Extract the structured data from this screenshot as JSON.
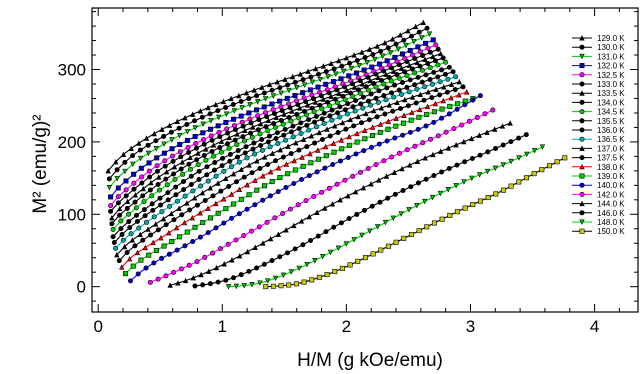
{
  "chart_data": {
    "type": "line",
    "title": "",
    "xlabel": "H/M (g kOe/emu)",
    "ylabel": "M² (emu/g)²",
    "xlim": [
      -0.05,
      4.35
    ],
    "ylim": [
      -35,
      385
    ],
    "x_ticks": [
      "0",
      "1",
      "2",
      "3",
      "4"
    ],
    "y_ticks": [
      "0",
      "100",
      "200",
      "300"
    ],
    "grid": false,
    "legend_position": "right",
    "series": [
      {
        "name": "129.0 K",
        "color": "#000000",
        "marker": "triangle",
        "x0": 0.08,
        "x1": 2.62,
        "values": [
          [
            0.08,
            160
          ],
          [
            0.14,
            172
          ],
          [
            0.2,
            182
          ],
          [
            0.3,
            195
          ],
          [
            0.5,
            216
          ],
          [
            0.8,
            241
          ],
          [
            1.2,
            268
          ],
          [
            1.6,
            292
          ],
          [
            2.0,
            316
          ],
          [
            2.3,
            336
          ],
          [
            2.62,
            365
          ]
        ]
      },
      {
        "name": "130.0 K",
        "color": "#000000",
        "marker": "circle",
        "x0": 0.09,
        "x1": 2.65,
        "values": [
          [
            0.09,
            149
          ],
          [
            0.15,
            161
          ],
          [
            0.21,
            171
          ],
          [
            0.3,
            184
          ],
          [
            0.5,
            205
          ],
          [
            0.8,
            231
          ],
          [
            1.2,
            259
          ],
          [
            1.6,
            283
          ],
          [
            2.0,
            307
          ],
          [
            2.3,
            327
          ],
          [
            2.65,
            357
          ]
        ]
      },
      {
        "name": "131.0 K",
        "color": "#00cc00",
        "marker": "triangle-down",
        "x0": 0.09,
        "x1": 2.67,
        "values": [
          [
            0.09,
            137
          ],
          [
            0.15,
            149
          ],
          [
            0.22,
            160
          ],
          [
            0.3,
            172
          ],
          [
            0.5,
            194
          ],
          [
            0.8,
            221
          ],
          [
            1.2,
            250
          ],
          [
            1.6,
            275
          ],
          [
            2.0,
            299
          ],
          [
            2.3,
            319
          ],
          [
            2.67,
            349
          ]
        ]
      },
      {
        "name": "132.0 K",
        "color": "#0000cc",
        "marker": "square",
        "x0": 0.1,
        "x1": 2.7,
        "values": [
          [
            0.1,
            124
          ],
          [
            0.16,
            136
          ],
          [
            0.23,
            147
          ],
          [
            0.32,
            160
          ],
          [
            0.5,
            181
          ],
          [
            0.8,
            209
          ],
          [
            1.2,
            239
          ],
          [
            1.6,
            265
          ],
          [
            2.0,
            290
          ],
          [
            2.3,
            310
          ],
          [
            2.7,
            341
          ]
        ]
      },
      {
        "name": "132.5 K",
        "color": "#ff00ff",
        "marker": "circle",
        "x0": 0.1,
        "x1": 2.72,
        "values": [
          [
            0.1,
            112
          ],
          [
            0.16,
            124
          ],
          [
            0.24,
            136
          ],
          [
            0.33,
            149
          ],
          [
            0.5,
            170
          ],
          [
            0.8,
            199
          ],
          [
            1.2,
            230
          ],
          [
            1.6,
            257
          ],
          [
            2.0,
            282
          ],
          [
            2.3,
            303
          ],
          [
            2.72,
            334
          ]
        ]
      },
      {
        "name": "133.0 K",
        "color": "#000000",
        "marker": "circle",
        "x0": 0.1,
        "x1": 2.74,
        "values": [
          [
            0.1,
            104
          ],
          [
            0.17,
            117
          ],
          [
            0.25,
            129
          ],
          [
            0.35,
            143
          ],
          [
            0.5,
            162
          ],
          [
            0.8,
            192
          ],
          [
            1.2,
            224
          ],
          [
            1.6,
            251
          ],
          [
            2.0,
            277
          ],
          [
            2.3,
            298
          ],
          [
            2.74,
            328
          ]
        ]
      },
      {
        "name": "133.5 K",
        "color": "#000000",
        "marker": "triangle",
        "x0": 0.11,
        "x1": 2.76,
        "values": [
          [
            0.11,
            95
          ],
          [
            0.18,
            109
          ],
          [
            0.26,
            121
          ],
          [
            0.36,
            135
          ],
          [
            0.52,
            155
          ],
          [
            0.8,
            184
          ],
          [
            1.2,
            217
          ],
          [
            1.6,
            245
          ],
          [
            2.0,
            271
          ],
          [
            2.3,
            292
          ],
          [
            2.76,
            322
          ]
        ]
      },
      {
        "name": "134.0 K",
        "color": "#000000",
        "marker": "circle",
        "x0": 0.11,
        "x1": 2.78,
        "values": [
          [
            0.11,
            87
          ],
          [
            0.18,
            100
          ],
          [
            0.27,
            113
          ],
          [
            0.37,
            127
          ],
          [
            0.54,
            148
          ],
          [
            0.8,
            176
          ],
          [
            1.2,
            210
          ],
          [
            1.6,
            238
          ],
          [
            2.0,
            265
          ],
          [
            2.3,
            286
          ],
          [
            2.78,
            316
          ]
        ]
      },
      {
        "name": "134.5 K",
        "color": "#00cc00",
        "marker": "circle",
        "x0": 0.12,
        "x1": 2.8,
        "values": [
          [
            0.12,
            79
          ],
          [
            0.19,
            92
          ],
          [
            0.28,
            105
          ],
          [
            0.38,
            119
          ],
          [
            0.55,
            140
          ],
          [
            0.8,
            168
          ],
          [
            1.2,
            203
          ],
          [
            1.6,
            232
          ],
          [
            2.0,
            259
          ],
          [
            2.3,
            280
          ],
          [
            2.8,
            310
          ]
        ]
      },
      {
        "name": "135.5 K",
        "color": "#000000",
        "marker": "circle",
        "x0": 0.12,
        "x1": 2.83,
        "values": [
          [
            0.12,
            69
          ],
          [
            0.2,
            83
          ],
          [
            0.29,
            96
          ],
          [
            0.4,
            110
          ],
          [
            0.57,
            131
          ],
          [
            0.8,
            158
          ],
          [
            1.2,
            194
          ],
          [
            1.6,
            224
          ],
          [
            2.0,
            252
          ],
          [
            2.3,
            273
          ],
          [
            2.83,
            303
          ]
        ]
      },
      {
        "name": "136.0 K",
        "color": "#000000",
        "marker": "circle",
        "x0": 0.13,
        "x1": 2.86,
        "values": [
          [
            0.13,
            61
          ],
          [
            0.21,
            75
          ],
          [
            0.3,
            88
          ],
          [
            0.42,
            103
          ],
          [
            0.6,
            124
          ],
          [
            0.85,
            152
          ],
          [
            1.2,
            186
          ],
          [
            1.6,
            217
          ],
          [
            2.0,
            245
          ],
          [
            2.4,
            270
          ],
          [
            2.86,
            297
          ]
        ]
      },
      {
        "name": "136.5 K",
        "color": "#00aaaa",
        "marker": "circle",
        "x0": 0.14,
        "x1": 2.88,
        "values": [
          [
            0.14,
            53
          ],
          [
            0.22,
            67
          ],
          [
            0.32,
            80
          ],
          [
            0.44,
            95
          ],
          [
            0.62,
            116
          ],
          [
            0.87,
            144
          ],
          [
            1.2,
            178
          ],
          [
            1.6,
            209
          ],
          [
            2.0,
            238
          ],
          [
            2.4,
            263
          ],
          [
            2.88,
            290
          ]
        ]
      },
      {
        "name": "137.0 K",
        "color": "#000000",
        "marker": "triangle",
        "x0": 0.15,
        "x1": 2.91,
        "values": [
          [
            0.15,
            44
          ],
          [
            0.23,
            58
          ],
          [
            0.33,
            71
          ],
          [
            0.46,
            86
          ],
          [
            0.65,
            108
          ],
          [
            0.9,
            136
          ],
          [
            1.25,
            171
          ],
          [
            1.65,
            203
          ],
          [
            2.05,
            232
          ],
          [
            2.45,
            257
          ],
          [
            2.91,
            283
          ]
        ]
      },
      {
        "name": "137.5 K",
        "color": "#000000",
        "marker": "circle",
        "x0": 0.17,
        "x1": 2.94,
        "values": [
          [
            0.17,
            36
          ],
          [
            0.25,
            50
          ],
          [
            0.35,
            63
          ],
          [
            0.48,
            78
          ],
          [
            0.68,
            100
          ],
          [
            0.95,
            128
          ],
          [
            1.3,
            163
          ],
          [
            1.7,
            195
          ],
          [
            2.1,
            225
          ],
          [
            2.5,
            250
          ],
          [
            2.94,
            276
          ]
        ]
      },
      {
        "name": "138.0 K",
        "color": "#ff0000",
        "marker": "triangle",
        "x0": 0.19,
        "x1": 2.97,
        "values": [
          [
            0.19,
            27
          ],
          [
            0.27,
            41
          ],
          [
            0.38,
            54
          ],
          [
            0.52,
            69
          ],
          [
            0.72,
            91
          ],
          [
            1.0,
            120
          ],
          [
            1.35,
            155
          ],
          [
            1.75,
            187
          ],
          [
            2.15,
            216
          ],
          [
            2.55,
            242
          ],
          [
            2.97,
            269
          ]
        ]
      },
      {
        "name": "139.0 K",
        "color": "#00cc00",
        "marker": "square",
        "x0": 0.22,
        "x1": 3.02,
        "values": [
          [
            0.22,
            18
          ],
          [
            0.3,
            31
          ],
          [
            0.42,
            45
          ],
          [
            0.57,
            60
          ],
          [
            0.78,
            82
          ],
          [
            1.05,
            110
          ],
          [
            1.4,
            145
          ],
          [
            1.8,
            178
          ],
          [
            2.2,
            208
          ],
          [
            2.6,
            235
          ],
          [
            3.02,
            260
          ]
        ]
      },
      {
        "name": "140.0 K",
        "color": "#0000cc",
        "marker": "circle",
        "x0": 0.26,
        "x1": 3.08,
        "values": [
          [
            0.26,
            8
          ],
          [
            0.34,
            20
          ],
          [
            0.46,
            34
          ],
          [
            0.62,
            49
          ],
          [
            0.85,
            71
          ],
          [
            1.12,
            99
          ],
          [
            1.48,
            134
          ],
          [
            1.88,
            168
          ],
          [
            2.28,
            198
          ],
          [
            2.68,
            225
          ],
          [
            3.08,
            264
          ]
        ]
      },
      {
        "name": "142.0 K",
        "color": "#ff00ff",
        "marker": "circle",
        "x0": 0.42,
        "x1": 3.18,
        "values": [
          [
            0.42,
            6
          ],
          [
            0.52,
            13
          ],
          [
            0.65,
            23
          ],
          [
            0.8,
            35
          ],
          [
            1.0,
            54
          ],
          [
            1.25,
            78
          ],
          [
            1.6,
            112
          ],
          [
            2.0,
            148
          ],
          [
            2.4,
            182
          ],
          [
            2.8,
            213
          ],
          [
            3.18,
            244
          ]
        ]
      },
      {
        "name": "144.0 K",
        "color": "#000000",
        "marker": "triangle",
        "x0": 0.58,
        "x1": 3.32,
        "values": [
          [
            0.58,
            2
          ],
          [
            0.7,
            8
          ],
          [
            0.85,
            18
          ],
          [
            1.0,
            30
          ],
          [
            1.2,
            48
          ],
          [
            1.45,
            72
          ],
          [
            1.8,
            106
          ],
          [
            2.2,
            142
          ],
          [
            2.6,
            175
          ],
          [
            3.0,
            204
          ],
          [
            3.32,
            226
          ]
        ]
      },
      {
        "name": "146.0 K",
        "color": "#000000",
        "marker": "circle",
        "x0": 0.78,
        "x1": 3.45,
        "values": [
          [
            0.78,
            1
          ],
          [
            0.9,
            4
          ],
          [
            1.05,
            10
          ],
          [
            1.2,
            20
          ],
          [
            1.4,
            36
          ],
          [
            1.65,
            58
          ],
          [
            2.0,
            92
          ],
          [
            2.4,
            128
          ],
          [
            2.8,
            161
          ],
          [
            3.15,
            187
          ],
          [
            3.45,
            210
          ]
        ]
      },
      {
        "name": "148.0 K",
        "color": "#00cc00",
        "marker": "triangle-down",
        "x0": 1.05,
        "x1": 3.58,
        "values": [
          [
            1.05,
            0
          ],
          [
            1.15,
            1
          ],
          [
            1.3,
            5
          ],
          [
            1.45,
            13
          ],
          [
            1.65,
            28
          ],
          [
            1.9,
            50
          ],
          [
            2.2,
            78
          ],
          [
            2.6,
            115
          ],
          [
            3.0,
            149
          ],
          [
            3.3,
            171
          ],
          [
            3.58,
            193
          ]
        ]
      },
      {
        "name": "150.0 K",
        "color": "#cccc00",
        "marker": "square",
        "x0": 1.35,
        "x1": 3.76,
        "values": [
          [
            1.35,
            0
          ],
          [
            1.45,
            1
          ],
          [
            1.6,
            4
          ],
          [
            1.75,
            11
          ],
          [
            1.95,
            24
          ],
          [
            2.2,
            44
          ],
          [
            2.5,
            70
          ],
          [
            2.9,
            104
          ],
          [
            3.25,
            132
          ],
          [
            3.5,
            155
          ],
          [
            3.76,
            178
          ]
        ]
      }
    ]
  }
}
